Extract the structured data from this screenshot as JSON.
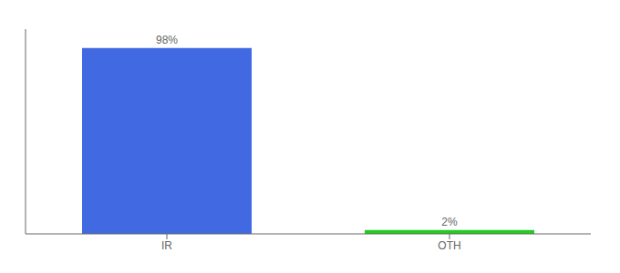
{
  "chart_data": {
    "type": "bar",
    "categories": [
      "IR",
      "OTH"
    ],
    "values": [
      98,
      2
    ],
    "value_labels": [
      "98%",
      "2%"
    ],
    "colors": [
      "#4169e1",
      "#22cc22"
    ],
    "ylim": [
      0,
      108
    ],
    "data_labels": true,
    "tick_labels": "x",
    "grid": false
  }
}
